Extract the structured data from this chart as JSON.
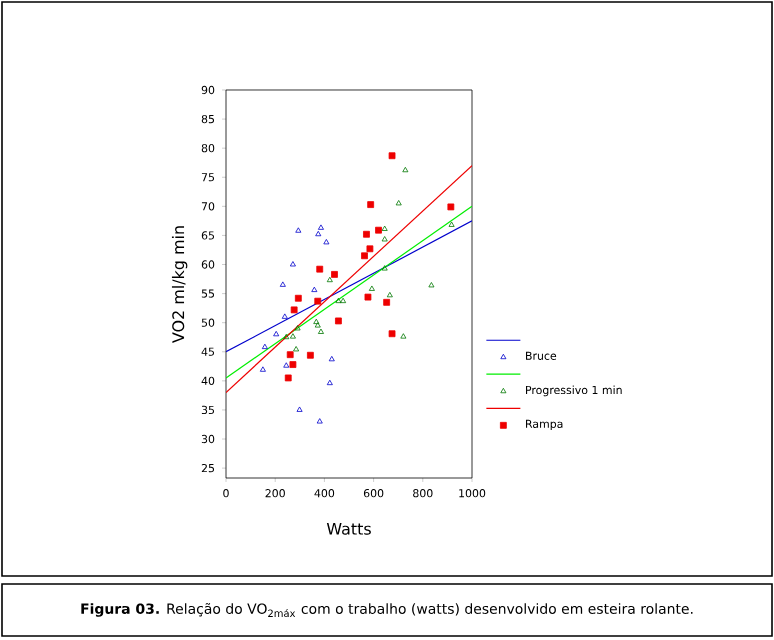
{
  "chart_data": {
    "type": "scatter",
    "xlabel": "Watts",
    "ylabel": "VO2 ml/kg min",
    "xlim": [
      0,
      1000
    ],
    "ylim": [
      23.3,
      90
    ],
    "xticks": [
      0,
      200,
      400,
      600,
      800,
      1000
    ],
    "yticks": [
      25,
      30,
      35,
      40,
      45,
      50,
      55,
      60,
      65,
      70,
      75,
      80,
      85,
      90
    ],
    "grid": false,
    "legend": "right",
    "series": [
      {
        "type": "line",
        "color": "#0000cc",
        "x": [
          0,
          1000
        ],
        "values": [
          45,
          67.5
        ]
      },
      {
        "name": "Bruce",
        "color": "#0000cc",
        "marker": "triangle",
        "x": [
          239,
          231,
          272,
          294,
          386,
          375,
          408,
          359,
          158,
          150,
          204,
          299,
          381,
          430,
          422,
          245
        ],
        "values": [
          51,
          56.5,
          60,
          65.8,
          66.3,
          65.2,
          63.8,
          55.6,
          45.8,
          41.9,
          48,
          35,
          33,
          43.7,
          39.6,
          42.6
        ]
      },
      {
        "type": "line",
        "color": "#00ee00",
        "x": [
          0,
          1000
        ],
        "values": [
          40.5,
          70
        ]
      },
      {
        "name": "Progressivo 1 min",
        "color": "#007700",
        "marker": "triangle",
        "x": [
          729,
          702,
          645,
          645,
          422,
          645,
          593,
          666,
          835,
          917,
          457,
          476,
          245,
          272,
          291,
          285,
          373,
          386,
          367,
          721
        ],
        "values": [
          76.2,
          70.5,
          66.1,
          64.3,
          57.3,
          59.3,
          55.8,
          54.7,
          56.4,
          66.8,
          53.7,
          53.7,
          47.5,
          47.6,
          49,
          45.4,
          49.5,
          48.4,
          50.1,
          47.6
        ]
      },
      {
        "type": "line",
        "color": "#ee0000",
        "x": [
          0,
          1000
        ],
        "values": [
          38,
          77
        ]
      },
      {
        "name": "Rampa",
        "color": "#ee0000",
        "marker": "square",
        "x": [
          675,
          588,
          914,
          620,
          571,
          585,
          563,
          381,
          441,
          294,
          373,
          457,
          577,
          653,
          277,
          675,
          261,
          343,
          272,
          253
        ],
        "values": [
          78.7,
          70.3,
          69.9,
          65.9,
          65.2,
          62.7,
          61.5,
          59.2,
          58.3,
          54.2,
          53.7,
          50.3,
          54.4,
          53.5,
          52.2,
          48.1,
          44.5,
          44.4,
          42.8,
          40.5
        ]
      }
    ],
    "annotations": [
      "**Figura 03.** Relação do VO$_{2máx}$ com o trabalho (watts) desenvolvido em esteira rolante."
    ]
  }
}
